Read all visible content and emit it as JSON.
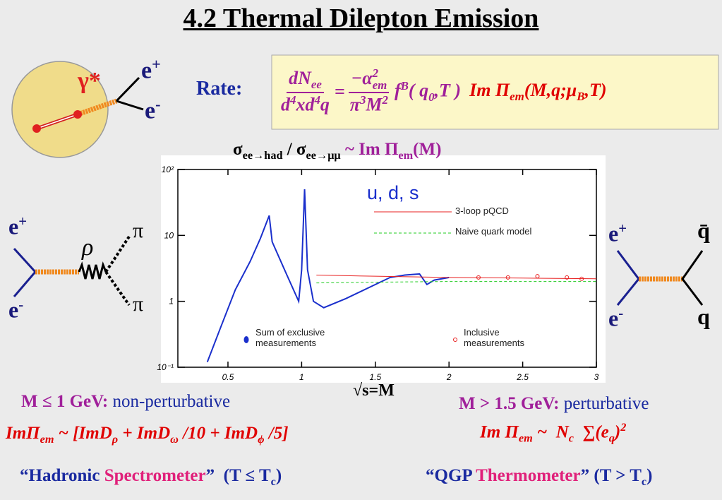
{
  "title": "4.2 Thermal Dilepton Emission",
  "fireball": {
    "gamma": "γ*",
    "e_plus": "e",
    "plus": "+",
    "e_minus": "e",
    "minus": "-"
  },
  "rate": {
    "label": "Rate:",
    "lhs_num": [
      "dN",
      "ee"
    ],
    "lhs_den": [
      "d",
      "4",
      "xd",
      "4",
      "q"
    ],
    "equals": "=",
    "rhs_num": [
      "−α",
      "2",
      "em"
    ],
    "rhs_den": [
      "π",
      "3",
      "M",
      "2"
    ],
    "dist": [
      "f",
      "B",
      "( q",
      "0",
      ",T )"
    ],
    "im": [
      "Im Π",
      "em",
      "(M,q;μ",
      "B",
      ",T)"
    ]
  },
  "chart_heading": [
    "σ",
    "ee→had",
    " / σ",
    "ee→μμ",
    " ~ Im Π",
    "em",
    "(M)"
  ],
  "left_diagram": {
    "e_plus": "e",
    "plus": "+",
    "e_minus": "e",
    "minus": "-",
    "rho": "ρ",
    "pi_top": "π",
    "pi_bottom": "π"
  },
  "right_diagram": {
    "e_plus": "e",
    "plus": "+",
    "e_minus": "e",
    "minus": "-",
    "q_bar": "q̄",
    "q": "q"
  },
  "chart_data": {
    "type": "line",
    "xlabel": "√s=M",
    "annotation": "u, d, s",
    "log_y": true,
    "xlim": [
      0.16,
      3
    ],
    "ylim": [
      0.1,
      100
    ],
    "xticks": [
      0.5,
      1,
      1.5,
      2,
      2.5,
      3
    ],
    "yticks": [
      {
        "value": 0.1,
        "label": "10⁻¹"
      },
      1,
      10,
      {
        "value": 100,
        "label": "10²"
      }
    ],
    "series": [
      {
        "name": "Sum of exclusive measurements",
        "color": "#1a2fcc",
        "marker": "dot",
        "x": [
          0.36,
          0.45,
          0.55,
          0.65,
          0.72,
          0.78,
          0.8,
          0.9,
          0.98,
          1.0,
          1.02,
          1.04,
          1.08,
          1.15,
          1.3,
          1.5,
          1.6,
          1.7,
          1.8,
          1.85,
          1.9,
          2.0
        ],
        "values": [
          0.12,
          0.4,
          1.5,
          4,
          9,
          20,
          8,
          2.5,
          1,
          3,
          50,
          3,
          1,
          0.8,
          1.1,
          1.8,
          2.3,
          2.5,
          2.6,
          1.8,
          2.1,
          2.3
        ]
      },
      {
        "name": "3-loop pQCD",
        "color": "#e82020",
        "marker": "line",
        "x": [
          1.1,
          1.5,
          2,
          2.5,
          3
        ],
        "values": [
          2.5,
          2.4,
          2.3,
          2.25,
          2.2
        ]
      },
      {
        "name": "Naive quark model",
        "color": "#22cc22",
        "marker": "dashed",
        "x": [
          1.1,
          1.5,
          2,
          2.5,
          3
        ],
        "values": [
          1.9,
          1.95,
          2,
          2,
          2
        ]
      },
      {
        "name": "Inclusive measurements",
        "color": "#e82020",
        "marker": "star",
        "x": [
          2.2,
          2.4,
          2.6,
          2.8,
          2.9
        ],
        "values": [
          2.3,
          2.3,
          2.4,
          2.3,
          2.2
        ]
      }
    ]
  },
  "bottom_left": {
    "line1": [
      "M ≤ 1 GeV:",
      " non-perturbative"
    ],
    "line2": [
      "ImΠ",
      "em",
      " ~ [ImD",
      "ρ",
      " + ImD",
      "ω",
      " /10 + ImD",
      "ϕ",
      " /5]"
    ],
    "line3": [
      "“Hadronic ",
      "Spectrometer",
      "”  (T ≤ T",
      "c",
      ")"
    ]
  },
  "bottom_right": {
    "line1": [
      "M > 1.5 GeV:",
      " perturbative"
    ],
    "line2": [
      "Im Π",
      "em",
      " ~  N",
      "c",
      "  ∑(e",
      "q",
      ")",
      "2"
    ],
    "line3": [
      "“QGP ",
      "Thermometer",
      "” (T > T",
      "c",
      ")"
    ]
  }
}
